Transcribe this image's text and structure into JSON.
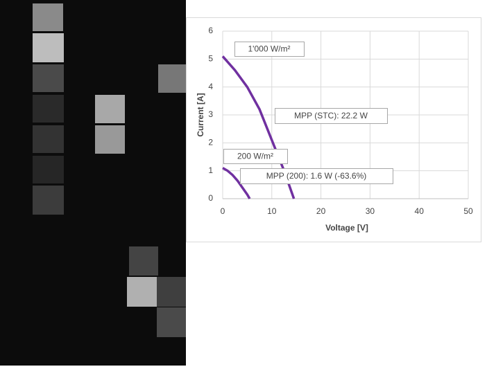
{
  "chart_data": {
    "type": "line",
    "xlabel": "Voltage [V]",
    "ylabel": "Current [A]",
    "xlim": [
      0,
      50
    ],
    "xticks": [
      0,
      10,
      20,
      30,
      40,
      50
    ],
    "ylim": [
      0,
      6
    ],
    "yticks": [
      0,
      1,
      2,
      3,
      4,
      5,
      6
    ],
    "grid": true,
    "series": [
      {
        "color": "#7030a0",
        "x": [
          0,
          2.5,
          5,
          7.5,
          10,
          12.5,
          14.5
        ],
        "values": [
          5.1,
          4.6,
          4.0,
          3.2,
          2.1,
          1.0,
          0
        ]
      },
      {
        "color": "#7030a0",
        "x": [
          0,
          1,
          2,
          3,
          4,
          5,
          5.5
        ],
        "values": [
          1.1,
          1.0,
          0.85,
          0.65,
          0.4,
          0.15,
          0
        ]
      }
    ],
    "annotations": [
      "1'000 W/m²",
      "MPP (STC): 22.2 W",
      "200 W/m²",
      "MPP (200): 1.6 W (-63.6%)"
    ]
  }
}
